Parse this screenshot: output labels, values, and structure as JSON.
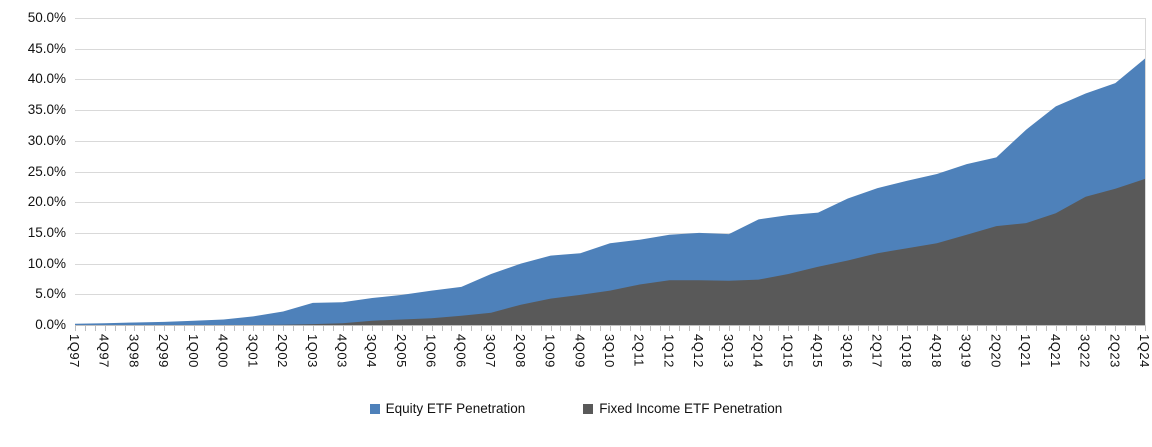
{
  "chart_data": {
    "type": "area",
    "overlap": true,
    "title": "",
    "xlabel": "",
    "ylabel": "",
    "ylim": [
      0,
      50
    ],
    "y_step": 5,
    "grid": true,
    "legend_position": "bottom",
    "y_ticks": [
      "50.0%",
      "45.0%",
      "40.0%",
      "35.0%",
      "30.0%",
      "25.0%",
      "20.0%",
      "15.0%",
      "10.0%",
      "5.0%",
      "0.0%"
    ],
    "x_tick_labels": [
      "1Q97",
      "4Q97",
      "3Q98",
      "2Q99",
      "1Q00",
      "4Q00",
      "3Q01",
      "2Q02",
      "1Q03",
      "4Q03",
      "3Q04",
      "2Q05",
      "1Q06",
      "4Q06",
      "3Q07",
      "2Q08",
      "1Q09",
      "4Q09",
      "3Q10",
      "2Q11",
      "1Q12",
      "4Q12",
      "3Q13",
      "2Q14",
      "1Q15",
      "4Q15",
      "3Q16",
      "2Q17",
      "1Q18",
      "4Q18",
      "3Q19",
      "2Q20",
      "1Q21",
      "4Q21",
      "3Q22",
      "2Q23",
      "1Q24"
    ],
    "quarters_per_label": 3,
    "series": [
      {
        "name": "Equity ETF Penetration",
        "color": "#4E81BA",
        "values": [
          0.2,
          0.3,
          0.4,
          0.5,
          0.7,
          0.9,
          1.4,
          2.2,
          3.6,
          3.7,
          4.4,
          4.9,
          5.6,
          6.2,
          8.3,
          10.0,
          11.3,
          11.7,
          13.3,
          13.9,
          14.7,
          15.0,
          14.8,
          17.2,
          17.9,
          18.3,
          20.6,
          22.3,
          23.5,
          24.6,
          26.2,
          27.3,
          31.8,
          35.6,
          37.7,
          39.4,
          43.4
        ]
      },
      {
        "name": "Fixed Income ETF Penetration",
        "color": "#595959",
        "values": [
          0.0,
          0.0,
          0.0,
          0.0,
          0.0,
          0.0,
          0.0,
          0.05,
          0.15,
          0.3,
          0.7,
          0.9,
          1.1,
          1.5,
          2.0,
          3.3,
          4.3,
          4.9,
          5.6,
          6.6,
          7.3,
          7.3,
          7.2,
          7.4,
          8.3,
          9.5,
          10.5,
          11.7,
          12.5,
          13.3,
          14.7,
          16.1,
          16.6,
          18.2,
          20.9,
          22.2,
          23.8
        ]
      }
    ]
  },
  "colors": {
    "background": "#FFFFFF",
    "gridline": "#D9D9D9",
    "axis_line": "#BFBFBF",
    "tick": "#BFBFBF",
    "label_text": "#111111",
    "equity_blue": "#4E81BA",
    "fixed_income_gray": "#595959"
  }
}
